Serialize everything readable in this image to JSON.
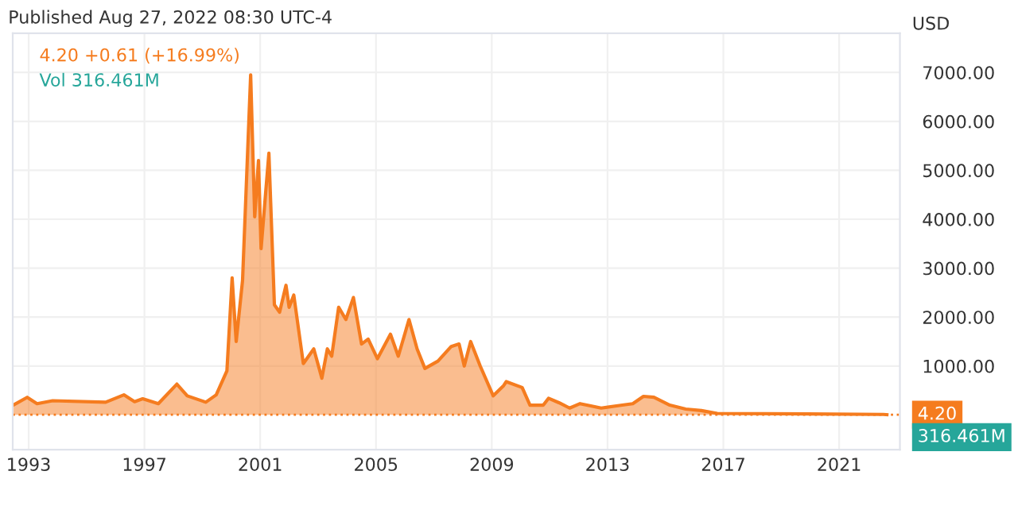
{
  "chart_data": {
    "type": "area",
    "title": "Published Aug 27, 2022 08:30 UTC-4",
    "ylabel": "USD",
    "annotations": [
      "4.20 +0.61 (+16.99%)",
      "Vol 316.461M",
      "316.461M"
    ],
    "series": [
      {
        "color": "#f57c1f",
        "x": [
          1992.47,
          1992.95,
          1993.29,
          1993.83,
          1995.66,
          1996.29,
          1996.66,
          1996.94,
          1997.48,
          1998.12,
          1998.48,
          1999.12,
          1999.48,
          1999.85,
          2000.03,
          2000.17,
          2000.39,
          2000.67,
          2000.81,
          2000.94,
          2001.03,
          2001.3,
          2001.49,
          2001.67,
          2001.89,
          2002.0,
          2002.16,
          2002.49,
          2002.85,
          2003.13,
          2003.32,
          2003.47,
          2003.71,
          2003.96,
          2004.22,
          2004.5,
          2004.73,
          2005.05,
          2005.5,
          2005.77,
          2006.14,
          2006.42,
          2006.69,
          2007.14,
          2007.6,
          2007.87,
          2008.05,
          2008.27,
          2008.6,
          2009.05,
          2009.41,
          2009.5,
          2010.05,
          2010.32,
          2010.78,
          2010.96,
          2011.32,
          2011.69,
          2012.05,
          2012.78,
          2013.51,
          2013.87,
          2014.24,
          2014.6,
          2015.15,
          2015.7,
          2016.24,
          2016.79,
          2022.53,
          2022.65
        ],
        "values": [
          200,
          360,
          230,
          290,
          260,
          410,
          270,
          330,
          230,
          630,
          390,
          260,
          410,
          900,
          2800,
          1500,
          2750,
          6950,
          4050,
          5200,
          3400,
          5350,
          2250,
          2100,
          2650,
          2200,
          2450,
          1050,
          1350,
          750,
          1350,
          1200,
          2200,
          1950,
          2400,
          1450,
          1550,
          1150,
          1650,
          1200,
          1950,
          1350,
          950,
          1100,
          1400,
          1450,
          1000,
          1500,
          1000,
          390,
          600,
          680,
          560,
          200,
          200,
          340,
          250,
          140,
          230,
          140,
          200,
          230,
          380,
          360,
          200,
          120,
          90,
          30,
          10,
          4.2
        ]
      }
    ],
    "xlim": [
      1992.45,
      2023.1
    ],
    "xticks": [
      1993,
      1997,
      2001,
      2005,
      2009,
      2013,
      2017,
      2021
    ],
    "ylim": [
      -710,
      7800
    ],
    "yticks": [
      {
        "value": 1000,
        "label": "1000.00"
      },
      {
        "value": 2000,
        "label": "2000.00"
      },
      {
        "value": 3000,
        "label": "3000.00"
      },
      {
        "value": 4000,
        "label": "4000.00"
      },
      {
        "value": 5000,
        "label": "5000.00"
      },
      {
        "value": 6000,
        "label": "6000.00"
      },
      {
        "value": 7000,
        "label": "7000.00"
      }
    ],
    "ref_lines": [
      {
        "axis": "y",
        "value": 4.2,
        "label": "4.20",
        "color": "#f57c1f",
        "line_style": "dotted"
      }
    ],
    "grid": true
  }
}
